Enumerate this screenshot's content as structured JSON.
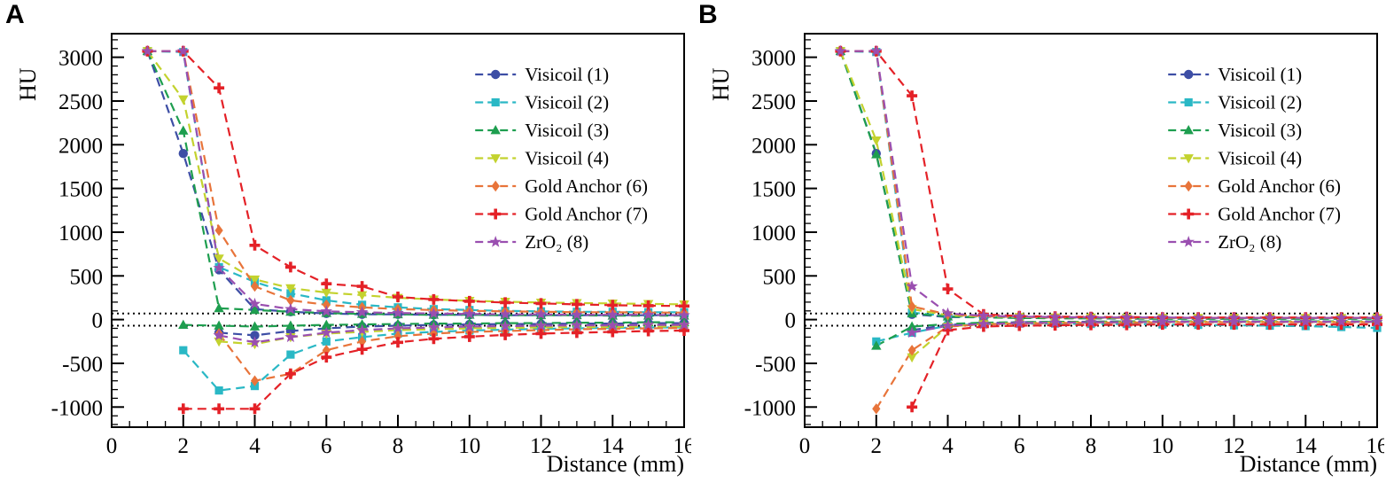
{
  "figure": {
    "panels": [
      {
        "label": "A"
      },
      {
        "label": "B"
      }
    ]
  },
  "chart_data": [
    {
      "type": "line",
      "panel": "A",
      "title": "",
      "xlabel": "Distance (mm)",
      "ylabel": "HU",
      "xlim": [
        0,
        16
      ],
      "ylim": [
        -1230,
        3270
      ],
      "x_ticks": [
        0,
        2,
        4,
        6,
        8,
        10,
        12,
        14,
        16
      ],
      "y_ticks": [
        -1000,
        -500,
        0,
        500,
        1000,
        1500,
        2000,
        2500,
        3000
      ],
      "reference_lines": [
        70,
        -70
      ],
      "grid": false,
      "legend_position": "upper-right-inside",
      "line_style": "dashed",
      "x": [
        1,
        2,
        3,
        4,
        5,
        6,
        7,
        8,
        9,
        10,
        11,
        12,
        13,
        14,
        15,
        16
      ],
      "series": [
        {
          "name": "Visicoil (1)",
          "color": "#3d4ea5",
          "marker": "circle",
          "upper": [
            3070,
            1900,
            570,
            120,
            90,
            70,
            60,
            60,
            55,
            55,
            50,
            50,
            50,
            50,
            50,
            50
          ],
          "lower": [
            null,
            null,
            -150,
            -180,
            -130,
            -100,
            -80,
            -70,
            -60,
            -55,
            -50,
            -50,
            -45,
            -45,
            -40,
            -40
          ]
        },
        {
          "name": "Visicoil (2)",
          "color": "#2ab8c5",
          "marker": "square",
          "upper": [
            3070,
            3060,
            600,
            430,
            300,
            220,
            170,
            140,
            120,
            110,
            100,
            95,
            90,
            90,
            85,
            85
          ],
          "lower": [
            null,
            -350,
            -810,
            -760,
            -400,
            -250,
            -200,
            -160,
            -140,
            -125,
            -115,
            -105,
            -100,
            -95,
            -90,
            -90
          ]
        },
        {
          "name": "Visicoil (3)",
          "color": "#1e9e4f",
          "marker": "triangle-up",
          "upper": [
            3070,
            2160,
            130,
            110,
            90,
            75,
            65,
            60,
            55,
            55,
            50,
            50,
            50,
            45,
            45,
            45
          ],
          "lower": [
            null,
            -60,
            -70,
            -80,
            -70,
            -60,
            -55,
            -50,
            -45,
            -45,
            -40,
            -40,
            -35,
            -35,
            -30,
            -30
          ]
        },
        {
          "name": "Visicoil (4)",
          "color": "#c3d22e",
          "marker": "triangle-down",
          "upper": [
            3070,
            2520,
            700,
            460,
            360,
            310,
            280,
            250,
            230,
            215,
            205,
            195,
            190,
            185,
            180,
            175
          ],
          "lower": [
            null,
            null,
            -250,
            -280,
            -200,
            -160,
            -140,
            -120,
            -110,
            -100,
            -95,
            -90,
            -85,
            -85,
            -80,
            -80
          ]
        },
        {
          "name": "Gold Anchor (6)",
          "color": "#e8743a",
          "marker": "diamond",
          "upper": [
            3070,
            3070,
            1020,
            380,
            220,
            170,
            140,
            120,
            110,
            100,
            95,
            90,
            85,
            85,
            80,
            80
          ],
          "lower": [
            null,
            null,
            -160,
            -700,
            -620,
            -350,
            -250,
            -190,
            -160,
            -140,
            -130,
            -120,
            -110,
            -105,
            -100,
            -95
          ]
        },
        {
          "name": "Gold Anchor (7)",
          "color": "#e42127",
          "marker": "plus",
          "upper": [
            3070,
            3070,
            2650,
            850,
            600,
            410,
            380,
            260,
            230,
            210,
            195,
            185,
            175,
            165,
            160,
            155
          ],
          "lower": [
            null,
            -1020,
            -1020,
            -1020,
            -620,
            -430,
            -340,
            -260,
            -220,
            -195,
            -175,
            -160,
            -150,
            -140,
            -130,
            -125
          ]
        },
        {
          "name": "ZrO₂ (8)",
          "color": "#9a4fb0",
          "marker": "star",
          "upper": [
            3070,
            3070,
            590,
            180,
            120,
            95,
            85,
            75,
            70,
            65,
            60,
            60,
            55,
            55,
            55,
            50
          ],
          "lower": [
            null,
            null,
            -180,
            -260,
            -200,
            -150,
            -120,
            -100,
            -90,
            -80,
            -75,
            -70,
            -65,
            -65,
            -60,
            -60
          ]
        }
      ]
    },
    {
      "type": "line",
      "panel": "B",
      "title": "",
      "xlabel": "Distance (mm)",
      "ylabel": "HU",
      "xlim": [
        0,
        16
      ],
      "ylim": [
        -1230,
        3270
      ],
      "x_ticks": [
        0,
        2,
        4,
        6,
        8,
        10,
        12,
        14,
        16
      ],
      "y_ticks": [
        -1000,
        -500,
        0,
        500,
        1000,
        1500,
        2000,
        2500,
        3000
      ],
      "reference_lines": [
        70,
        -70
      ],
      "grid": false,
      "legend_position": "upper-right-inside",
      "line_style": "dashed",
      "x": [
        1,
        2,
        3,
        4,
        5,
        6,
        7,
        8,
        9,
        10,
        11,
        12,
        13,
        14,
        15,
        16
      ],
      "series": [
        {
          "name": "Visicoil (1)",
          "color": "#3d4ea5",
          "marker": "circle",
          "upper": [
            3070,
            1900,
            60,
            30,
            25,
            20,
            15,
            15,
            10,
            10,
            10,
            10,
            10,
            10,
            10,
            10
          ],
          "lower": [
            null,
            null,
            -120,
            -60,
            -40,
            -30,
            -25,
            -25,
            -20,
            -20,
            -20,
            -20,
            -20,
            -20,
            -20,
            -20
          ]
        },
        {
          "name": "Visicoil (2)",
          "color": "#2ab8c5",
          "marker": "square",
          "upper": [
            3070,
            3060,
            80,
            40,
            30,
            25,
            20,
            20,
            20,
            15,
            15,
            15,
            15,
            15,
            15,
            15
          ],
          "lower": [
            null,
            -250,
            -150,
            -70,
            -50,
            -45,
            -45,
            -50,
            -50,
            -55,
            -60,
            -65,
            -70,
            -75,
            -85,
            -95
          ]
        },
        {
          "name": "Visicoil (3)",
          "color": "#1e9e4f",
          "marker": "triangle-up",
          "upper": [
            3070,
            1890,
            70,
            35,
            25,
            20,
            15,
            15,
            15,
            10,
            10,
            10,
            10,
            10,
            10,
            10
          ],
          "lower": [
            null,
            -300,
            -80,
            -50,
            -35,
            -30,
            -25,
            -25,
            -20,
            -20,
            -20,
            -20,
            -20,
            -20,
            -20,
            -20
          ]
        },
        {
          "name": "Visicoil (4)",
          "color": "#c3d22e",
          "marker": "triangle-down",
          "upper": [
            3070,
            2050,
            120,
            50,
            35,
            30,
            25,
            25,
            20,
            20,
            20,
            20,
            20,
            20,
            20,
            20
          ],
          "lower": [
            null,
            null,
            -430,
            -80,
            -50,
            -40,
            -35,
            -30,
            -30,
            -25,
            -25,
            -25,
            -25,
            -25,
            -25,
            -25
          ]
        },
        {
          "name": "Gold Anchor (6)",
          "color": "#e8743a",
          "marker": "diamond",
          "upper": [
            3070,
            3070,
            150,
            60,
            40,
            30,
            25,
            25,
            20,
            20,
            20,
            20,
            20,
            20,
            20,
            20
          ],
          "lower": [
            null,
            -1020,
            -350,
            -80,
            -55,
            -45,
            -40,
            -35,
            -35,
            -30,
            -30,
            -30,
            -30,
            -30,
            -30,
            -30
          ]
        },
        {
          "name": "Gold Anchor (7)",
          "color": "#e42127",
          "marker": "plus",
          "upper": [
            3070,
            3070,
            2560,
            350,
            60,
            40,
            35,
            30,
            30,
            25,
            25,
            25,
            25,
            25,
            25,
            25
          ],
          "lower": [
            null,
            null,
            -1000,
            -120,
            -80,
            -70,
            -65,
            -60,
            -60,
            -55,
            -55,
            -55,
            -55,
            -55,
            -55,
            -55
          ]
        },
        {
          "name": "ZrO₂ (8)",
          "color": "#9a4fb0",
          "marker": "star",
          "upper": [
            3070,
            3070,
            380,
            70,
            45,
            35,
            30,
            25,
            25,
            25,
            20,
            20,
            20,
            20,
            20,
            20
          ],
          "lower": [
            null,
            null,
            -150,
            -70,
            -50,
            -40,
            -35,
            -30,
            -30,
            -25,
            -25,
            -25,
            -25,
            -25,
            -25,
            -25
          ]
        }
      ]
    }
  ]
}
